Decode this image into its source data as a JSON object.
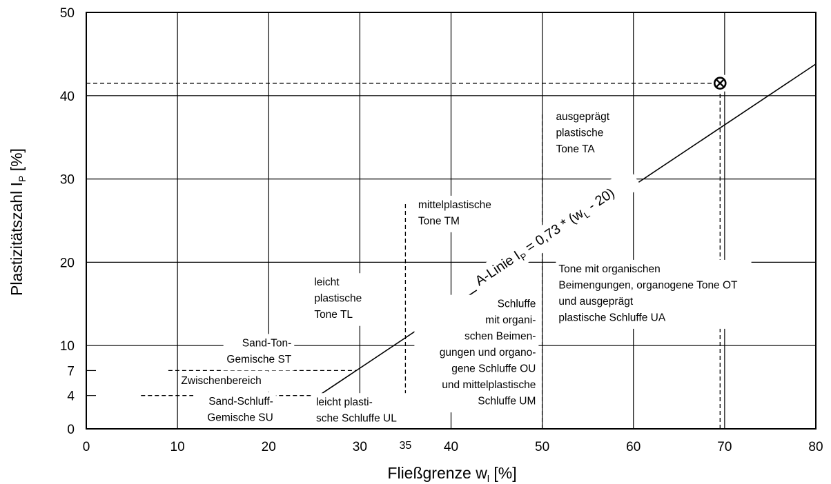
{
  "chart_data": {
    "type": "line",
    "xlabel": "Fließgrenze w",
    "xlabel_sub": "l",
    "xlabel_unit": "[%]",
    "ylabel": "Plastizitätszahl I",
    "ylabel_sub": "P",
    "ylabel_unit": "[%]",
    "xlim": [
      0,
      80
    ],
    "ylim": [
      0,
      50
    ],
    "x_ticks": [
      {
        "value": 0,
        "label": "0"
      },
      {
        "value": 10,
        "label": "10"
      },
      {
        "value": 20,
        "label": "20"
      },
      {
        "value": 30,
        "label": "30"
      },
      {
        "value": 35,
        "label": "35"
      },
      {
        "value": 40,
        "label": "40"
      },
      {
        "value": 50,
        "label": "50"
      },
      {
        "value": 60,
        "label": "60"
      },
      {
        "value": 70,
        "label": "70"
      },
      {
        "value": 80,
        "label": "80"
      }
    ],
    "y_ticks": [
      {
        "value": 0,
        "label": "0"
      },
      {
        "value": 4,
        "label": "4"
      },
      {
        "value": 7,
        "label": "7"
      },
      {
        "value": 10,
        "label": "10"
      },
      {
        "value": 20,
        "label": "20"
      },
      {
        "value": 30,
        "label": "30"
      },
      {
        "value": 40,
        "label": "40"
      },
      {
        "value": 50,
        "label": "50"
      }
    ],
    "grid": true,
    "grid_x": [
      10,
      20,
      30,
      40,
      50,
      60,
      70
    ],
    "grid_y": [
      10,
      20,
      30,
      40
    ],
    "a_line": {
      "equation": "I_P = 0,73 * (w_L - 20)",
      "label_parts": [
        "A-Linie I",
        "P",
        " = 0,73 * (w",
        "L",
        " - 20)"
      ],
      "points": [
        [
          25.5,
          4
        ],
        [
          80,
          43.8
        ]
      ]
    },
    "dashed_lines": [
      {
        "points": [
          [
            6,
            4
          ],
          [
            25.5,
            4
          ]
        ]
      },
      {
        "points": [
          [
            9,
            7
          ],
          [
            29.6,
            7
          ]
        ]
      },
      {
        "points": [
          [
            25.5,
            4
          ],
          [
            29.6,
            7
          ]
        ]
      },
      {
        "points": [
          [
            35,
            0
          ],
          [
            35,
            27
          ]
        ]
      },
      {
        "points": [
          [
            50,
            0
          ],
          [
            50,
            38
          ]
        ]
      },
      {
        "points": [
          [
            0,
            41.5
          ],
          [
            69.5,
            41.5
          ]
        ]
      },
      {
        "points": [
          [
            69.5,
            0
          ],
          [
            69.5,
            41.5
          ]
        ]
      }
    ],
    "point": {
      "x": 69.5,
      "y": 41.5,
      "marker": "circle-x"
    },
    "regions": [
      {
        "lines": [
          "ausgeprägt",
          "plastische",
          "Tone TA"
        ],
        "x": 51.5,
        "y": 37.1,
        "anchor": "start"
      },
      {
        "lines": [
          "mittelplastische",
          "Tone TM"
        ],
        "x": 36.4,
        "y": 26.5,
        "anchor": "start"
      },
      {
        "lines": [
          "Tone mit organischen",
          "Beimengungen, organogene Tone OT",
          "und ausgeprägt",
          "plastische Schluffe UA"
        ],
        "x": 51.8,
        "y": 18.8,
        "anchor": "start"
      },
      {
        "lines": [
          "leicht",
          "plastische",
          "Tone TL"
        ],
        "x": 25,
        "y": 17.2,
        "anchor": "start"
      },
      {
        "lines": [
          "Schluffe",
          "mit organi-",
          "schen Beimen-",
          "gungen und organo-",
          "gene Schluffe OU",
          "und mittelplastische",
          "Schluffe UM"
        ],
        "x": 49.3,
        "y": 14.6,
        "anchor": "end"
      },
      {
        "lines": [
          "Sand-Ton-",
          "Gemische ST"
        ],
        "x": 22.5,
        "y": 9.9,
        "anchor": "end"
      },
      {
        "lines": [
          "Zwischenbereich"
        ],
        "x": 10.4,
        "y": 5.4,
        "anchor": "start"
      },
      {
        "lines": [
          "Sand-Schluff-",
          "Gemische SU"
        ],
        "x": 20.5,
        "y": 2.9,
        "anchor": "end"
      },
      {
        "lines": [
          "leicht plasti-",
          "sche Schluffe UL"
        ],
        "x": 25.2,
        "y": 2.8,
        "anchor": "start"
      }
    ]
  }
}
